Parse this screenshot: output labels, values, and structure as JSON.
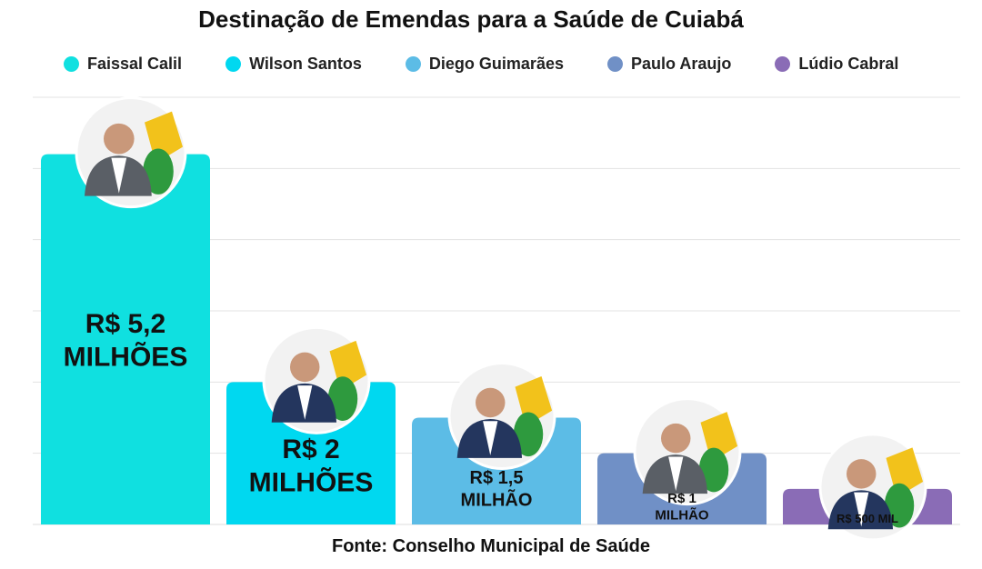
{
  "title": "Destinação de Emendas para a Saúde de Cuiabá",
  "source": "Fonte: Conselho Municipal de Saúde",
  "legend": [
    {
      "name": "Faissal Calil",
      "color": "#10e0e0"
    },
    {
      "name": "Wilson Santos",
      "color": "#00d8f0"
    },
    {
      "name": "Diego Guimarães",
      "color": "#5cbce6"
    },
    {
      "name": "Paulo Araujo",
      "color": "#7090c6"
    },
    {
      "name": "Lúdio Cabral",
      "color": "#8a6cb6"
    }
  ],
  "chart_data": {
    "type": "bar",
    "categories": [
      "Faissal Calil",
      "Wilson Santos",
      "Diego Guimarães",
      "Paulo Araujo",
      "Lúdio Cabral"
    ],
    "values": [
      5.2,
      2,
      1.5,
      1,
      0.5
    ],
    "unit": "milhões de R$",
    "ylim": [
      0,
      6
    ],
    "grid": true,
    "legend_position": "top",
    "data_labels": [
      [
        "R$ 5,2",
        "MILHÕES"
      ],
      [
        "R$ 2",
        "MILHÕES"
      ],
      [
        "R$ 1,5",
        "MILHÃO"
      ],
      [
        "R$ 1",
        "MILHÃO"
      ],
      [
        "R$ 500 MIL"
      ]
    ],
    "colors": [
      "#10e0e0",
      "#00d8f0",
      "#5cbce6",
      "#7090c6",
      "#8a6cb6"
    ]
  }
}
